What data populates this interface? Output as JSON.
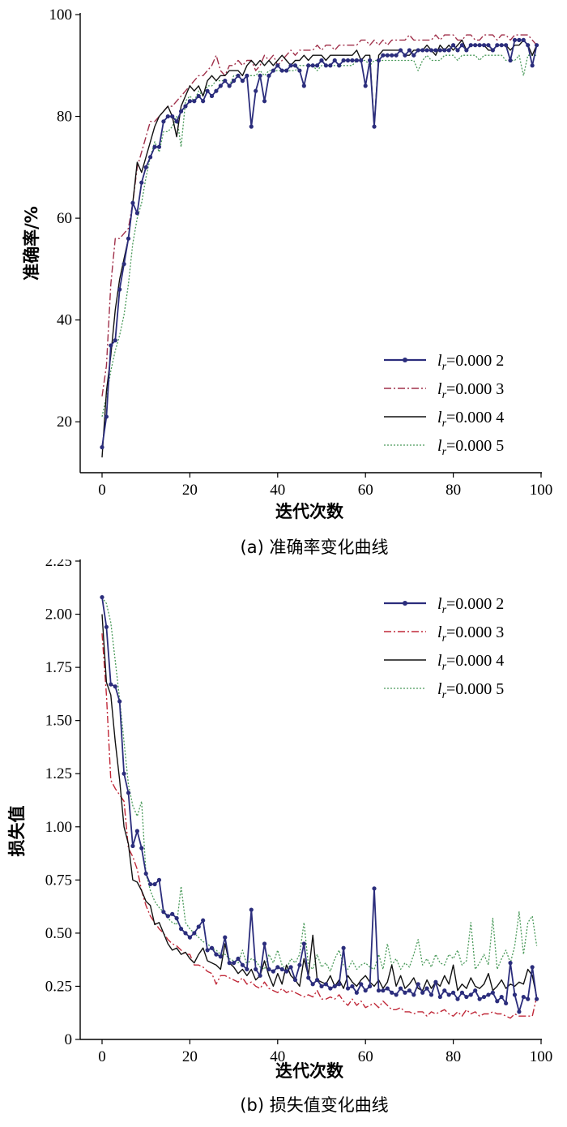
{
  "chart_data": [
    {
      "type": "line",
      "caption": "(a) 准确率变化曲线",
      "xlabel": "迭代次数",
      "ylabel": "准确率/%",
      "xlim": [
        0,
        100
      ],
      "ylim": [
        10,
        100
      ],
      "xticks": [
        0,
        20,
        40,
        60,
        80,
        100
      ],
      "yticks": [
        20,
        40,
        60,
        80,
        100
      ],
      "legend_position": "bottom-right",
      "series": [
        {
          "name": "lr=0.000 2",
          "sub": "r",
          "color": "#2b2d7c",
          "style": "solid-markers",
          "values": [
            15,
            21,
            35,
            36,
            46,
            51,
            56,
            63,
            61,
            67,
            70,
            72,
            74,
            74,
            79,
            80,
            80,
            79,
            81,
            82,
            83,
            83,
            84,
            83,
            85,
            84,
            85,
            86,
            87,
            86,
            87,
            88,
            87,
            88,
            78,
            85,
            88,
            83,
            88,
            89,
            90,
            89,
            89,
            90,
            90,
            89,
            86,
            90,
            90,
            90,
            91,
            90,
            90,
            91,
            90,
            91,
            91,
            91,
            91,
            91,
            86,
            91,
            78,
            91,
            92,
            92,
            92,
            92,
            93,
            92,
            93,
            92,
            93,
            93,
            93,
            93,
            93,
            93,
            93,
            93,
            94,
            93,
            94,
            93,
            94,
            94,
            94,
            94,
            94,
            93,
            94,
            94,
            94,
            91,
            95,
            95,
            95,
            94,
            90,
            94
          ]
        },
        {
          "name": "lr=0.000 3",
          "sub": "r",
          "color": "#a0304a",
          "style": "dashdot",
          "values": [
            25,
            31,
            47,
            56,
            56,
            57,
            58,
            63,
            70,
            73,
            76,
            79,
            79,
            80,
            81,
            82,
            82,
            83,
            84,
            85,
            86,
            87,
            88,
            88,
            89,
            90,
            92,
            89,
            88,
            90,
            90,
            91,
            90,
            91,
            91,
            89,
            90,
            92,
            91,
            92,
            90,
            91,
            92,
            93,
            92,
            93,
            93,
            93,
            93,
            94,
            93,
            94,
            94,
            93,
            94,
            94,
            94,
            94,
            94,
            95,
            95,
            94,
            95,
            94,
            95,
            94,
            95,
            95,
            95,
            95,
            96,
            95,
            95,
            95,
            95,
            95,
            96,
            95,
            96,
            96,
            96,
            95,
            95,
            96,
            96,
            95,
            95,
            96,
            96,
            96,
            95,
            96,
            96,
            95,
            96,
            96,
            96,
            96,
            95,
            94
          ]
        },
        {
          "name": "lr=0.000 4",
          "sub": "r",
          "color": "#111111",
          "style": "solid",
          "values": [
            13,
            26,
            33,
            42,
            48,
            52,
            56,
            63,
            71,
            69,
            72,
            75,
            78,
            80,
            81,
            82,
            80,
            76,
            82,
            84,
            86,
            85,
            86,
            84,
            87,
            88,
            87,
            88,
            88,
            89,
            89,
            89,
            88,
            90,
            91,
            90,
            91,
            90,
            91,
            90,
            91,
            92,
            91,
            90,
            91,
            91,
            92,
            91,
            92,
            92,
            92,
            91,
            92,
            92,
            92,
            92,
            92,
            92,
            93,
            91,
            92,
            92,
            78,
            92,
            93,
            93,
            93,
            93,
            93,
            92,
            92,
            93,
            93,
            93,
            94,
            93,
            92,
            94,
            93,
            94,
            93,
            94,
            95,
            93,
            94,
            94,
            94,
            94,
            93,
            93,
            94,
            94,
            94,
            93,
            94,
            94,
            95,
            94,
            92,
            94
          ]
        },
        {
          "name": "lr=0.000 5",
          "sub": "r",
          "color": "#4a9a5a",
          "style": "dotted",
          "values": [
            21,
            25,
            30,
            34,
            37,
            41,
            47,
            55,
            60,
            63,
            68,
            72,
            75,
            73,
            77,
            77,
            78,
            80,
            74,
            83,
            84,
            83,
            85,
            84,
            86,
            86,
            87,
            87,
            87,
            86,
            88,
            88,
            87,
            88,
            88,
            88,
            89,
            88,
            89,
            89,
            89,
            89,
            89,
            89,
            89,
            90,
            90,
            90,
            90,
            89,
            90,
            90,
            90,
            90,
            90,
            90,
            90,
            90,
            91,
            91,
            91,
            90,
            91,
            91,
            91,
            91,
            91,
            91,
            91,
            91,
            91,
            91,
            89,
            91,
            92,
            91,
            91,
            91,
            92,
            92,
            92,
            91,
            92,
            92,
            92,
            92,
            91,
            92,
            92,
            92,
            92,
            92,
            91,
            91,
            91,
            92,
            88,
            92,
            92,
            92
          ]
        }
      ]
    },
    {
      "type": "line",
      "caption": "(b) 损失值变化曲线",
      "xlabel": "迭代次数",
      "ylabel": "损失值",
      "xlim": [
        0,
        100
      ],
      "ylim": [
        0,
        2.25
      ],
      "xticks": [
        0,
        20,
        40,
        60,
        80,
        100
      ],
      "yticks": [
        "0",
        "0.25",
        "0.50",
        "0.75",
        "1.00",
        "1.25",
        "1.50",
        "1.75",
        "2.00",
        "2.25"
      ],
      "legend_position": "top-right",
      "series": [
        {
          "name": "lr=0.000 2",
          "sub": "r",
          "color": "#2b2d7c",
          "style": "solid-markers",
          "values": [
            2.08,
            1.94,
            1.67,
            1.66,
            1.59,
            1.25,
            1.16,
            0.91,
            0.98,
            0.9,
            0.78,
            0.73,
            0.73,
            0.75,
            0.6,
            0.58,
            0.59,
            0.57,
            0.52,
            0.5,
            0.48,
            0.5,
            0.53,
            0.56,
            0.42,
            0.43,
            0.4,
            0.39,
            0.48,
            0.36,
            0.36,
            0.38,
            0.35,
            0.33,
            0.61,
            0.33,
            0.3,
            0.45,
            0.33,
            0.32,
            0.34,
            0.33,
            0.32,
            0.34,
            0.28,
            0.35,
            0.45,
            0.29,
            0.26,
            0.28,
            0.25,
            0.26,
            0.24,
            0.25,
            0.26,
            0.43,
            0.24,
            0.25,
            0.22,
            0.26,
            0.23,
            0.25,
            0.71,
            0.23,
            0.23,
            0.24,
            0.22,
            0.21,
            0.24,
            0.22,
            0.23,
            0.21,
            0.26,
            0.22,
            0.24,
            0.21,
            0.27,
            0.2,
            0.23,
            0.21,
            0.22,
            0.19,
            0.22,
            0.2,
            0.21,
            0.23,
            0.19,
            0.2,
            0.21,
            0.22,
            0.18,
            0.2,
            0.17,
            0.36,
            0.21,
            0.13,
            0.2,
            0.19,
            0.34,
            0.19
          ]
        },
        {
          "name": "lr=0.000 3",
          "sub": "r",
          "color": "#c02838",
          "style": "dashdot",
          "values": [
            1.91,
            1.62,
            1.22,
            1.18,
            1.15,
            1.12,
            0.9,
            0.86,
            0.8,
            0.7,
            0.63,
            0.58,
            0.55,
            0.52,
            0.5,
            0.47,
            0.45,
            0.44,
            0.42,
            0.4,
            0.4,
            0.35,
            0.35,
            0.34,
            0.32,
            0.31,
            0.26,
            0.3,
            0.3,
            0.29,
            0.28,
            0.27,
            0.29,
            0.26,
            0.27,
            0.25,
            0.24,
            0.27,
            0.24,
            0.23,
            0.22,
            0.24,
            0.22,
            0.23,
            0.22,
            0.21,
            0.2,
            0.21,
            0.2,
            0.23,
            0.19,
            0.19,
            0.2,
            0.19,
            0.21,
            0.18,
            0.16,
            0.19,
            0.16,
            0.18,
            0.15,
            0.16,
            0.17,
            0.15,
            0.18,
            0.16,
            0.14,
            0.14,
            0.15,
            0.13,
            0.13,
            0.12,
            0.13,
            0.13,
            0.11,
            0.13,
            0.12,
            0.13,
            0.14,
            0.12,
            0.11,
            0.13,
            0.11,
            0.14,
            0.12,
            0.13,
            0.11,
            0.12,
            0.12,
            0.13,
            0.12,
            0.12,
            0.11,
            0.1,
            0.12,
            0.11,
            0.11,
            0.11,
            0.11,
            0.2
          ]
        },
        {
          "name": "lr=0.000 4",
          "sub": "r",
          "color": "#111111",
          "style": "solid",
          "values": [
            2.0,
            1.68,
            1.62,
            1.4,
            1.22,
            1.0,
            0.92,
            0.75,
            0.74,
            0.7,
            0.65,
            0.63,
            0.54,
            0.55,
            0.5,
            0.45,
            0.42,
            0.43,
            0.4,
            0.41,
            0.38,
            0.36,
            0.4,
            0.43,
            0.37,
            0.36,
            0.35,
            0.33,
            0.45,
            0.36,
            0.34,
            0.31,
            0.33,
            0.3,
            0.33,
            0.28,
            0.3,
            0.37,
            0.3,
            0.25,
            0.31,
            0.26,
            0.35,
            0.3,
            0.28,
            0.25,
            0.38,
            0.3,
            0.49,
            0.28,
            0.27,
            0.26,
            0.3,
            0.25,
            0.28,
            0.24,
            0.3,
            0.27,
            0.25,
            0.28,
            0.3,
            0.27,
            0.25,
            0.28,
            0.24,
            0.27,
            0.35,
            0.25,
            0.3,
            0.24,
            0.26,
            0.29,
            0.24,
            0.23,
            0.28,
            0.24,
            0.27,
            0.25,
            0.3,
            0.26,
            0.35,
            0.23,
            0.26,
            0.24,
            0.29,
            0.25,
            0.24,
            0.26,
            0.31,
            0.23,
            0.25,
            0.28,
            0.24,
            0.26,
            0.25,
            0.27,
            0.26,
            0.33,
            0.3,
            0.2
          ]
        },
        {
          "name": "lr=0.000 5",
          "sub": "r",
          "color": "#4a9a5a",
          "style": "dotted",
          "values": [
            2.08,
            2.05,
            1.96,
            1.78,
            1.6,
            1.4,
            1.2,
            1.1,
            1.05,
            1.12,
            0.78,
            0.7,
            0.65,
            0.62,
            0.6,
            0.57,
            0.55,
            0.54,
            0.72,
            0.55,
            0.52,
            0.5,
            0.48,
            0.46,
            0.45,
            0.43,
            0.42,
            0.4,
            0.4,
            0.38,
            0.37,
            0.36,
            0.42,
            0.35,
            0.38,
            0.37,
            0.34,
            0.33,
            0.4,
            0.36,
            0.42,
            0.35,
            0.33,
            0.38,
            0.36,
            0.4,
            0.55,
            0.35,
            0.33,
            0.4,
            0.34,
            0.36,
            0.32,
            0.38,
            0.42,
            0.35,
            0.33,
            0.37,
            0.33,
            0.35,
            0.36,
            0.34,
            0.33,
            0.4,
            0.33,
            0.45,
            0.35,
            0.38,
            0.33,
            0.36,
            0.34,
            0.4,
            0.47,
            0.35,
            0.38,
            0.34,
            0.4,
            0.36,
            0.35,
            0.4,
            0.38,
            0.42,
            0.35,
            0.37,
            0.55,
            0.33,
            0.36,
            0.4,
            0.35,
            0.57,
            0.33,
            0.38,
            0.42,
            0.36,
            0.44,
            0.6,
            0.4,
            0.55,
            0.58,
            0.44
          ]
        }
      ]
    }
  ]
}
